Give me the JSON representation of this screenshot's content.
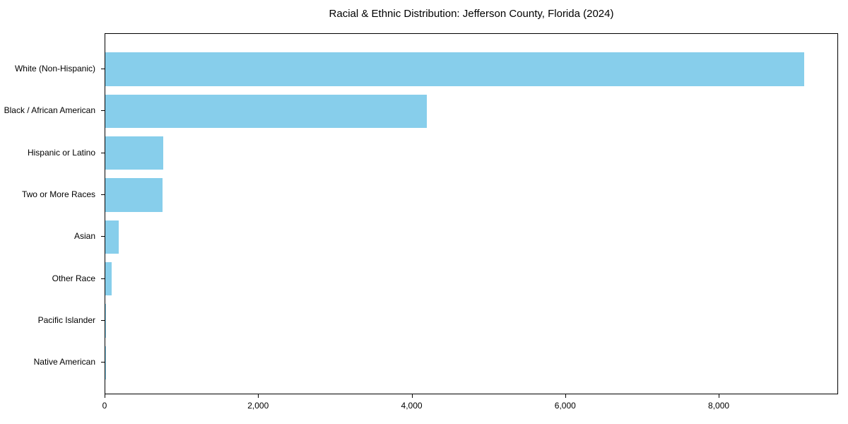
{
  "chart_data": {
    "type": "bar",
    "orientation": "horizontal",
    "title": "Racial & Ethnic Distribution: Jefferson County, Florida (2024)",
    "categories": [
      "White (Non-Hispanic)",
      "Black / African American",
      "Hispanic or Latino",
      "Two or More Races",
      "Asian",
      "Other Race",
      "Pacific Islander",
      "Native American"
    ],
    "values": [
      9100,
      4185,
      755,
      750,
      175,
      85,
      6,
      2
    ],
    "xlabel": "",
    "ylabel": "",
    "xlim": [
      0,
      9555
    ],
    "x_ticks": [
      {
        "value": 0,
        "label": "0"
      },
      {
        "value": 2000,
        "label": "2,000"
      },
      {
        "value": 4000,
        "label": "4,000"
      },
      {
        "value": 6000,
        "label": "6,000"
      },
      {
        "value": 8000,
        "label": "8,000"
      }
    ],
    "bar_color": "#87CEEB",
    "axis_color": "#000000",
    "text_color": "#000000",
    "grid": false,
    "legend": null
  }
}
